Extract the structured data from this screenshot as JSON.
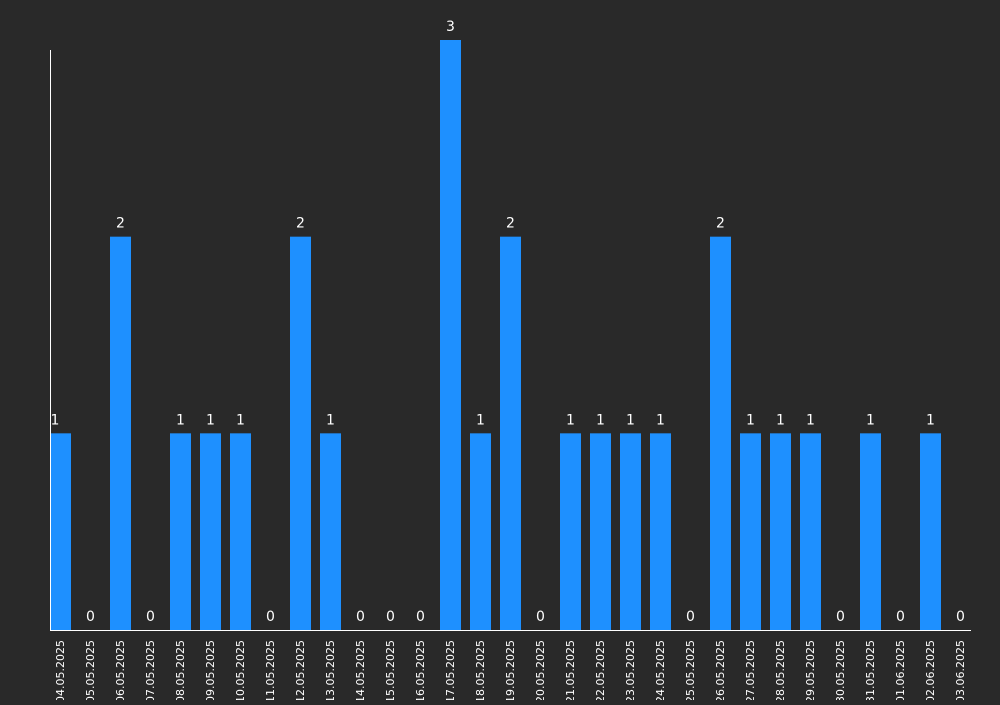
{
  "chart_data": {
    "type": "bar",
    "title": "",
    "xlabel": "",
    "ylabel": "",
    "ylim": [
      0,
      3
    ],
    "grid": false,
    "legend": "none",
    "data_labels": true,
    "bar_color": "#1e90ff",
    "background_color": "#292929",
    "text_color": "#ffffff",
    "axis_color": "#ffffff",
    "categories": [
      "04.05.2025",
      "05.05.2025",
      "06.05.2025",
      "07.05.2025",
      "08.05.2025",
      "09.05.2025",
      "10.05.2025",
      "11.05.2025",
      "12.05.2025",
      "13.05.2025",
      "14.05.2025",
      "15.05.2025",
      "16.05.2025",
      "17.05.2025",
      "18.05.2025",
      "19.05.2025",
      "20.05.2025",
      "21.05.2025",
      "22.05.2025",
      "23.05.2025",
      "24.05.2025",
      "25.05.2025",
      "26.05.2025",
      "27.05.2025",
      "28.05.2025",
      "29.05.2025",
      "30.05.2025",
      "31.05.2025",
      "01.06.2025",
      "02.06.2025",
      "03.06.2025"
    ],
    "values": [
      1,
      0,
      2,
      0,
      1,
      1,
      1,
      0,
      2,
      1,
      0,
      0,
      0,
      3,
      1,
      2,
      0,
      1,
      1,
      1,
      1,
      0,
      2,
      1,
      1,
      1,
      0,
      1,
      0,
      1,
      0
    ]
  }
}
